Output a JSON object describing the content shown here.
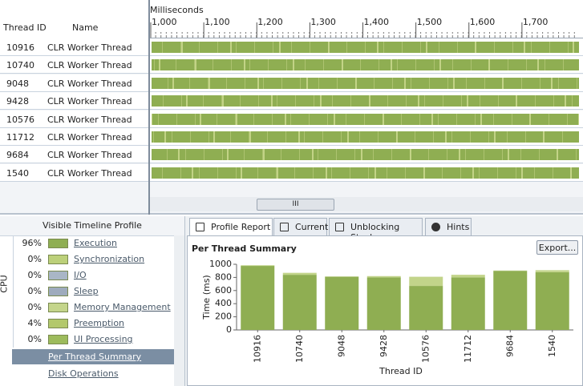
{
  "timeline": {
    "columns": [
      "Thread ID",
      "Name"
    ],
    "axis_label": "Milliseconds",
    "xlim": [
      1000,
      1800
    ],
    "xticks": [
      {
        "value": 1000,
        "label": "1,000"
      },
      {
        "value": 1100,
        "label": "1,100"
      },
      {
        "value": 1200,
        "label": "1,200"
      },
      {
        "value": 1300,
        "label": "1,300"
      },
      {
        "value": 1400,
        "label": "1,400"
      },
      {
        "value": 1500,
        "label": "1,500"
      },
      {
        "value": 1600,
        "label": "1,600"
      },
      {
        "value": 1700,
        "label": "1,700"
      }
    ],
    "threads": [
      {
        "id": "10916",
        "name": "CLR Worker Thread"
      },
      {
        "id": "10740",
        "name": "CLR Worker Thread"
      },
      {
        "id": "9048",
        "name": "CLR Worker Thread"
      },
      {
        "id": "9428",
        "name": "CLR Worker Thread"
      },
      {
        "id": "10576",
        "name": "CLR Worker Thread"
      },
      {
        "id": "11712",
        "name": "CLR Worker Thread"
      },
      {
        "id": "9684",
        "name": "CLR Worker Thread"
      },
      {
        "id": "1540",
        "name": "CLR Worker Thread"
      }
    ],
    "scroll_thumb": "III"
  },
  "profile": {
    "title": "Visible Timeline Profile",
    "group": "CPU",
    "items": [
      {
        "percent": "96%",
        "label": "Execution",
        "color": "#8fae52"
      },
      {
        "percent": "0%",
        "label": "Synchronization",
        "color": "#bcd07a"
      },
      {
        "percent": "0%",
        "label": "I/O",
        "color": "#a9b6c6"
      },
      {
        "percent": "0%",
        "label": "Sleep",
        "color": "#9eabbd"
      },
      {
        "percent": "0%",
        "label": "Memory Management",
        "color": "#c4d58b"
      },
      {
        "percent": "4%",
        "label": "Preemption",
        "color": "#b3c86c"
      },
      {
        "percent": "0%",
        "label": "UI Processing",
        "color": "#9dbb5c"
      }
    ],
    "views": [
      "Per Thread Summary",
      "Disk Operations"
    ]
  },
  "tabs": [
    "Profile Report",
    "Current",
    "Unblocking Stack",
    "Hints"
  ],
  "report": {
    "title": "Per Thread Summary",
    "button": "Export..."
  },
  "chart_data": {
    "type": "bar",
    "stacked": true,
    "ylabel": "Time (ms)",
    "xlabel": "Thread ID",
    "categories": [
      "10916",
      "10740",
      "9048",
      "9428",
      "10576",
      "11712",
      "9684",
      "1540"
    ],
    "series": [
      {
        "color": "#8fae52",
        "values": [
          975,
          840,
          810,
          800,
          670,
          800,
          900,
          880
        ]
      },
      {
        "color": "#c2d48a",
        "values": [
          10,
          30,
          5,
          20,
          140,
          40,
          5,
          30
        ]
      }
    ],
    "ylim": [
      0,
      1000
    ],
    "yticks": [
      0,
      200,
      400,
      600,
      800,
      1000
    ]
  }
}
